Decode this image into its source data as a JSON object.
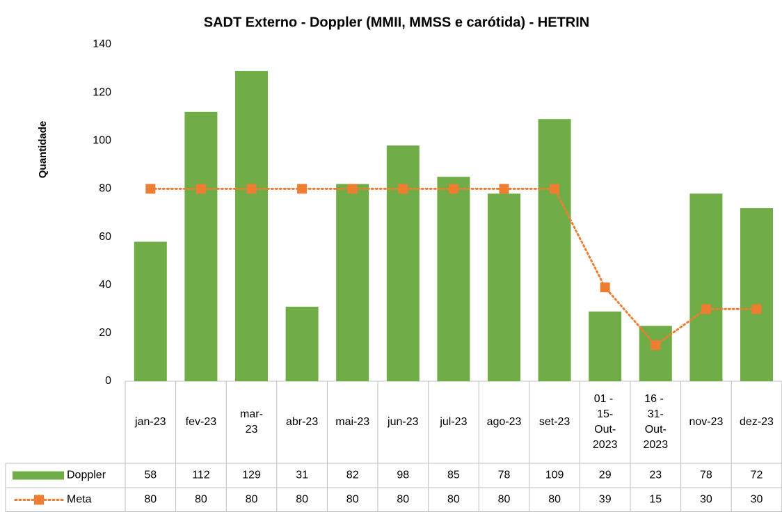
{
  "chart_data": {
    "type": "bar",
    "title": "SADT Externo - Doppler (MMII, MMSS e carótida) - HETRIN",
    "y_label": "Quantidade",
    "categories": [
      "jan-23",
      "fev-23",
      "mar-23",
      "abr-23",
      "mai-23",
      "jun-23",
      "jul-23",
      "ago-23",
      "set-23",
      "01 - 15-Out-2023",
      "16 - 31-Out-2023",
      "nov-23",
      "dez-23"
    ],
    "series": [
      {
        "name": "Doppler",
        "type": "bar",
        "color": "#70ad47",
        "values": [
          58,
          112,
          129,
          31,
          82,
          98,
          85,
          78,
          109,
          29,
          23,
          78,
          72
        ]
      },
      {
        "name": "Meta",
        "type": "line",
        "color": "#ed7d31",
        "values": [
          80,
          80,
          80,
          80,
          80,
          80,
          80,
          80,
          80,
          39,
          15,
          30,
          30
        ]
      }
    ],
    "ylim": [
      0,
      140
    ],
    "yticks": [
      0,
      20,
      40,
      60,
      80,
      100,
      120,
      140
    ],
    "grid": false,
    "data_table": true
  }
}
